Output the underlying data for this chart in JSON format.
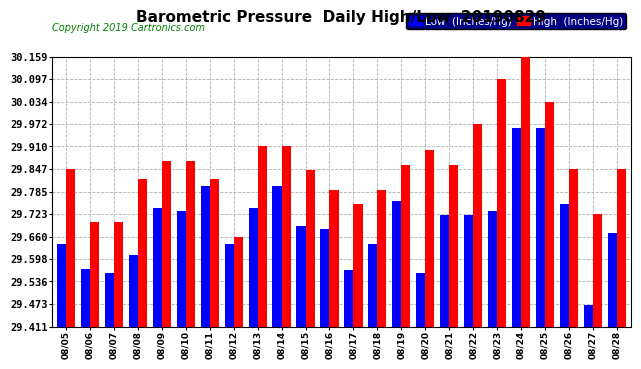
{
  "title": "Barometric Pressure  Daily High/Low  20190829",
  "copyright": "Copyright 2019 Cartronics.com",
  "legend_low": "Low  (Inches/Hg)",
  "legend_high": "High  (Inches/Hg)",
  "dates": [
    "08/05",
    "08/06",
    "08/07",
    "08/08",
    "08/09",
    "08/10",
    "08/11",
    "08/12",
    "08/13",
    "08/14",
    "08/15",
    "08/16",
    "08/17",
    "08/18",
    "08/19",
    "08/20",
    "08/21",
    "08/22",
    "08/23",
    "08/24",
    "08/25",
    "08/26",
    "08/27",
    "08/28"
  ],
  "high_values": [
    29.847,
    29.7,
    29.7,
    29.82,
    29.87,
    29.87,
    29.82,
    29.66,
    29.91,
    29.91,
    29.845,
    29.79,
    29.75,
    29.79,
    29.86,
    29.9,
    29.86,
    29.972,
    30.097,
    30.159,
    30.034,
    29.847,
    29.723,
    29.847
  ],
  "low_values": [
    29.64,
    29.57,
    29.56,
    29.61,
    29.74,
    29.73,
    29.8,
    29.64,
    29.74,
    29.8,
    29.69,
    29.68,
    29.567,
    29.64,
    29.76,
    29.56,
    29.72,
    29.72,
    29.73,
    29.962,
    29.96,
    29.75,
    29.47,
    29.67
  ],
  "ymin": 29.411,
  "ymax": 30.159,
  "yticks": [
    29.411,
    29.473,
    29.536,
    29.598,
    29.66,
    29.723,
    29.785,
    29.847,
    29.91,
    29.972,
    30.034,
    30.097,
    30.159
  ],
  "bar_color_low": "#0000ff",
  "bar_color_high": "#ff0000",
  "bg_color": "#ffffff",
  "grid_color": "#b0b0b0",
  "title_fontsize": 11,
  "copyright_fontsize": 7,
  "ytick_fontsize": 7.5,
  "xtick_fontsize": 6.5,
  "legend_fontsize": 7.5
}
